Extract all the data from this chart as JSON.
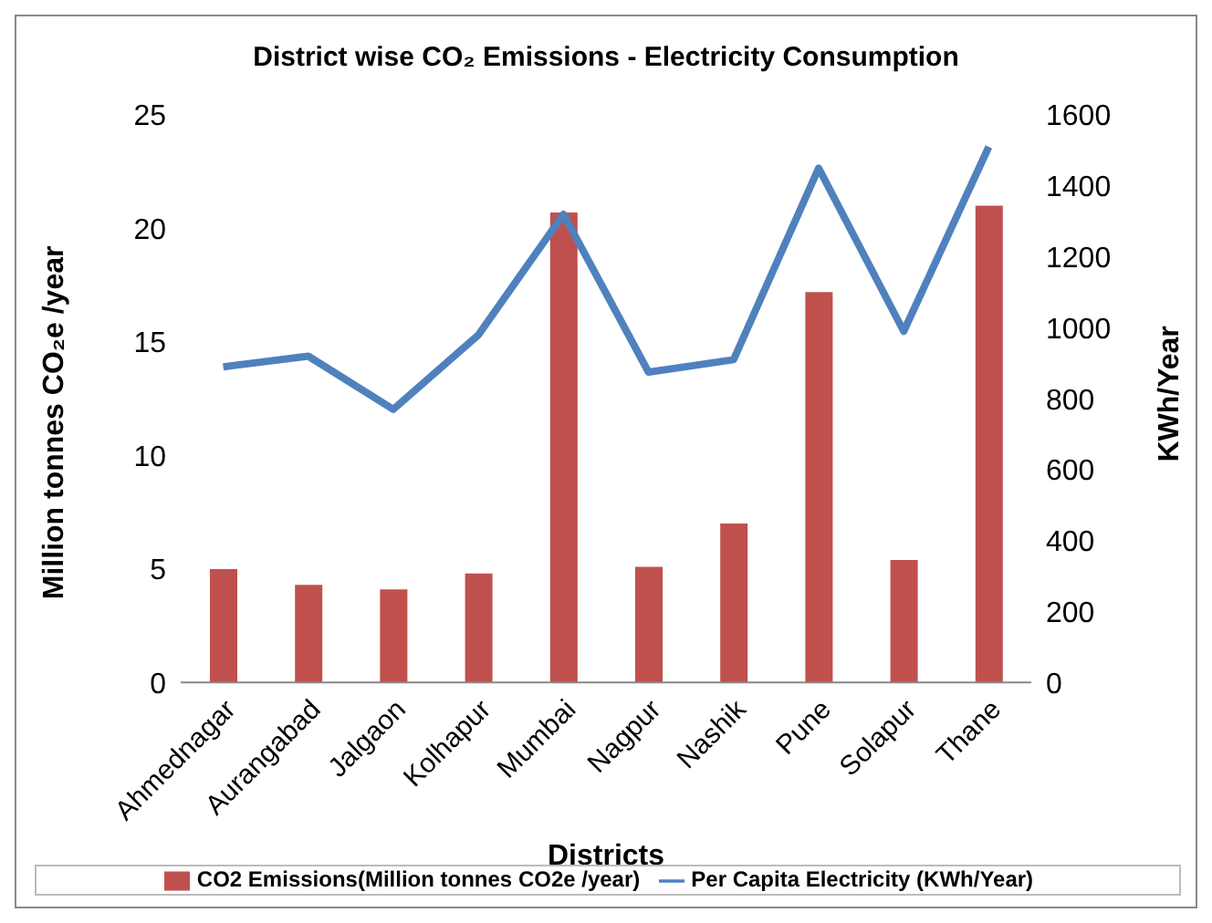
{
  "chart_data": {
    "type": "bar",
    "title": "District wise CO₂ Emissions - Electricity Consumption",
    "xlabel": "Districts",
    "ylabel": "Million tonnes CO₂e /year",
    "y2label": "KWh/Year",
    "categories": [
      "Ahmednagar",
      "Aurangabad",
      "Jalgaon",
      "Kolhapur",
      "Mumbai",
      "Nagpur",
      "Nashik",
      "Pune",
      "Solapur",
      "Thane"
    ],
    "series": [
      {
        "name": "CO2 Emissions(Million tonnes CO2e /year)",
        "color": "#c0504d",
        "values": [
          5.0,
          4.3,
          4.1,
          4.8,
          20.7,
          5.1,
          7.0,
          17.2,
          5.4,
          21.0
        ]
      },
      {
        "name": "Per Capita Electricity (KWh/Year)",
        "type": "line",
        "axis": "y2",
        "color": "#4f81bd",
        "values": [
          890,
          920,
          770,
          980,
          1320,
          875,
          910,
          1450,
          990,
          1510
        ]
      }
    ],
    "ylim": [
      0,
      25
    ],
    "yticks": [
      0,
      5,
      10,
      15,
      20,
      25
    ],
    "y2lim": [
      0,
      1600
    ],
    "y2ticks": [
      0,
      200,
      400,
      600,
      800,
      1000,
      1200,
      1400,
      1600
    ],
    "grid": false,
    "legend": "bottom",
    "marker": "none",
    "line_style": "solid"
  }
}
